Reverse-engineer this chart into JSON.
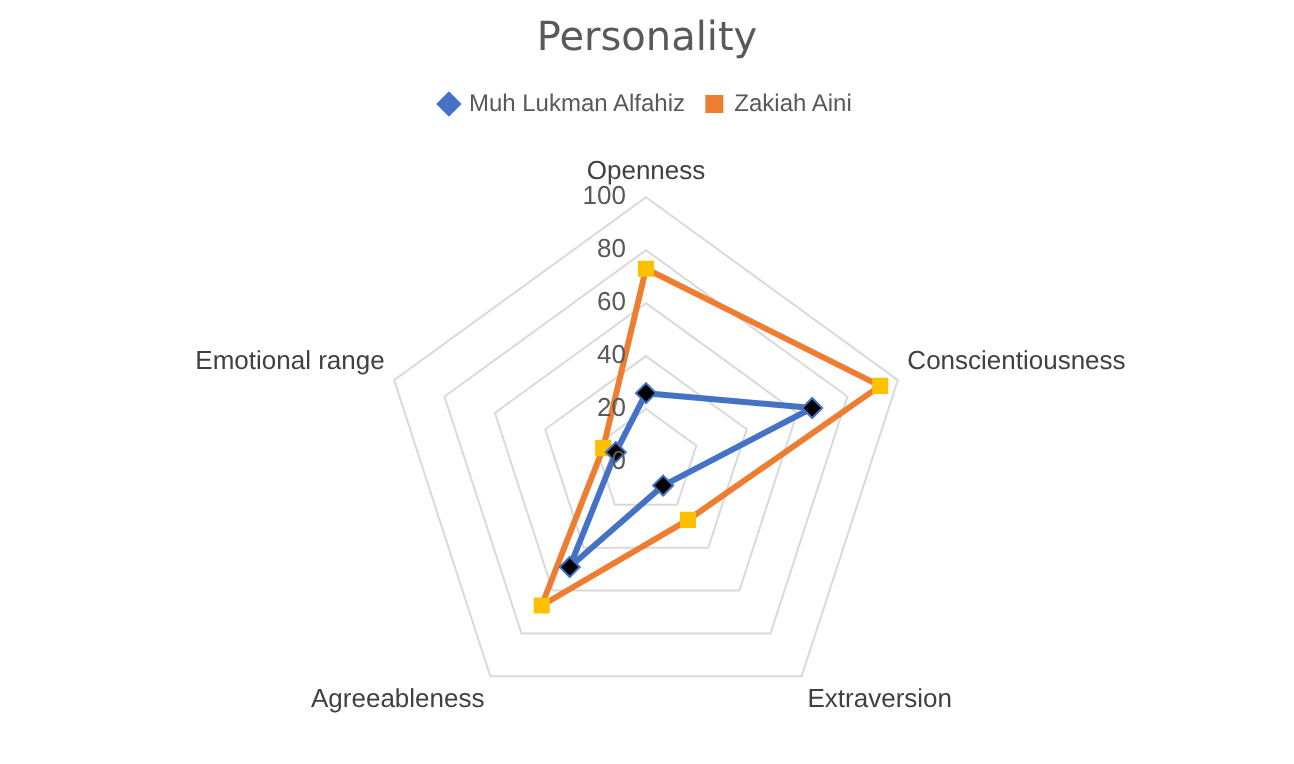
{
  "chart_data": {
    "type": "radar",
    "title": "Personality",
    "categories": [
      "Openness",
      "Conscientiousness",
      "Extraversion",
      "Agreeableness",
      "Emotional range"
    ],
    "series": [
      {
        "name": "Muh Lukman Alfahiz",
        "color": "#4472c4",
        "marker": "diamond",
        "values": [
          26,
          66,
          11,
          49,
          12
        ]
      },
      {
        "name": "Zakiah Aini",
        "color": "#ed7d31",
        "marker": "square",
        "values": [
          73,
          93,
          27,
          67,
          17
        ]
      }
    ],
    "ylim": [
      0,
      100
    ],
    "yticks": [
      0,
      20,
      40,
      60,
      80,
      100
    ],
    "grid": true,
    "legend": "top"
  }
}
